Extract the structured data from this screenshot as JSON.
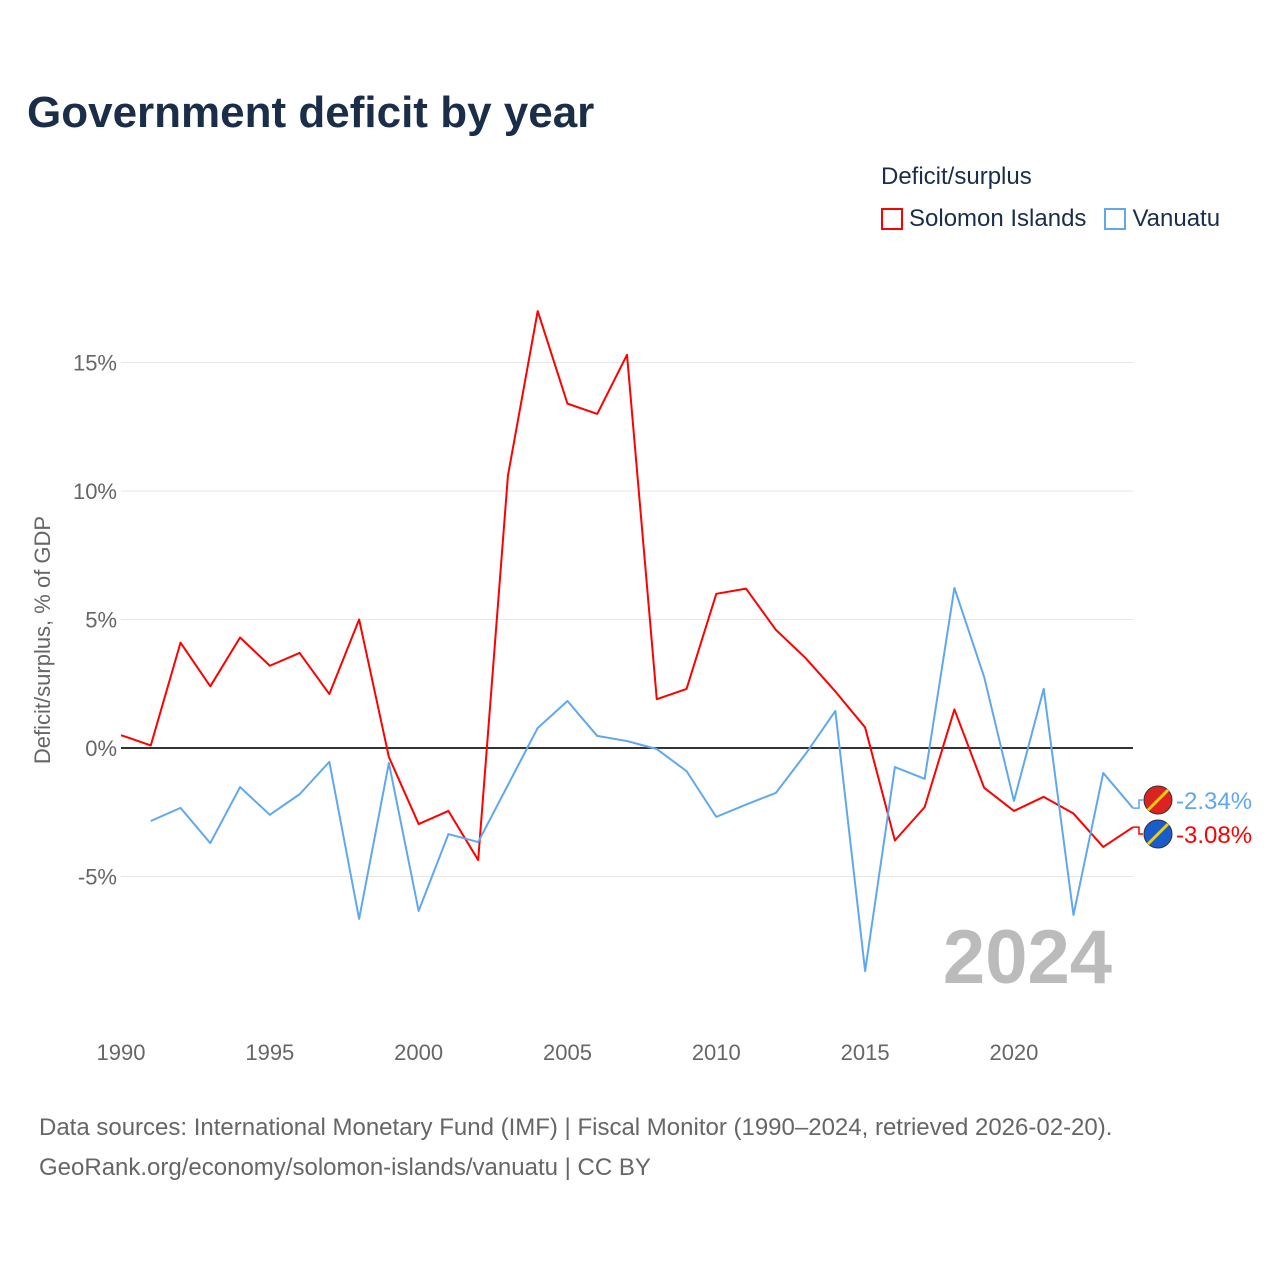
{
  "title": "Government deficit by year",
  "legend": {
    "title": "Deficit/surplus",
    "items": [
      {
        "name": "Solomon Islands",
        "color": "#ff0000"
      },
      {
        "name": "Vanuatu",
        "color": "#5fa8f0"
      }
    ]
  },
  "source": {
    "line1": "Data sources: International Monetary Fund (IMF) | Fiscal Monitor (1990–2024, retrieved 2026-02-20).",
    "line2": "GeoRank.org/economy/solomon-islands/vanuatu | CC BY"
  },
  "chart_data": {
    "type": "line",
    "title": "Government deficit by year",
    "xlabel": "",
    "ylabel": "Deficit/surplus, % of GDP",
    "xlim": [
      1990,
      2024
    ],
    "ylim": [
      -10,
      18
    ],
    "xticks": [
      1990,
      1995,
      2000,
      2005,
      2010,
      2015,
      2020
    ],
    "xtick_labels": [
      "1990",
      "1995",
      "2000",
      "2005",
      "2010",
      "2015",
      "2020"
    ],
    "yticks": [
      -5,
      0,
      5,
      10,
      15
    ],
    "ytick_labels": [
      "-5%",
      "0%",
      "5%",
      "10%",
      "15%"
    ],
    "year_watermark": "2024",
    "grid": true,
    "legend_position": "top-right",
    "series": [
      {
        "name": "Solomon Islands",
        "color": "#ff0000",
        "end_label": "-3.08%",
        "x": [
          1990,
          1991,
          1992,
          1993,
          1994,
          1995,
          1996,
          1997,
          1998,
          1999,
          2000,
          2001,
          2002,
          2003,
          2004,
          2005,
          2006,
          2007,
          2008,
          2009,
          2010,
          2011,
          2012,
          2013,
          2014,
          2015,
          2016,
          2017,
          2018,
          2019,
          2020,
          2021,
          2022,
          2023,
          2024
        ],
        "values": [
          0.5,
          0.1,
          4.1,
          2.4,
          4.3,
          3.2,
          3.7,
          2.1,
          5.0,
          -0.35,
          -2.96,
          -2.45,
          -4.36,
          10.6,
          17.0,
          13.4,
          13.0,
          15.3,
          1.9,
          2.3,
          6.0,
          6.2,
          4.6,
          3.5,
          2.2,
          0.8,
          -3.6,
          -2.3,
          1.5,
          -1.55,
          -2.45,
          -1.9,
          -2.55,
          -3.85,
          -3.08
        ]
      },
      {
        "name": "Vanuatu",
        "color": "#5fa8f0",
        "end_label": "-2.34%",
        "x": [
          1991,
          1992,
          1993,
          1994,
          1995,
          1996,
          1997,
          1998,
          1999,
          2000,
          2001,
          2002,
          2003,
          2004,
          2005,
          2006,
          2007,
          2008,
          2009,
          2010,
          2011,
          2012,
          2013,
          2014,
          2015,
          2016,
          2017,
          2018,
          2019,
          2020,
          2021,
          2022,
          2023,
          2024
        ],
        "values": [
          -2.84,
          -2.33,
          -3.7,
          -1.52,
          -2.6,
          -1.8,
          -0.54,
          -6.65,
          -0.58,
          -6.34,
          -3.35,
          -3.66,
          -1.44,
          0.78,
          1.83,
          0.47,
          0.27,
          -0.04,
          -0.9,
          -2.68,
          -2.2,
          -1.75,
          -0.23,
          1.44,
          -8.68,
          -0.74,
          -1.2,
          6.23,
          2.76,
          -2.06,
          2.3,
          -6.5,
          -0.97,
          -2.34
        ]
      }
    ]
  }
}
